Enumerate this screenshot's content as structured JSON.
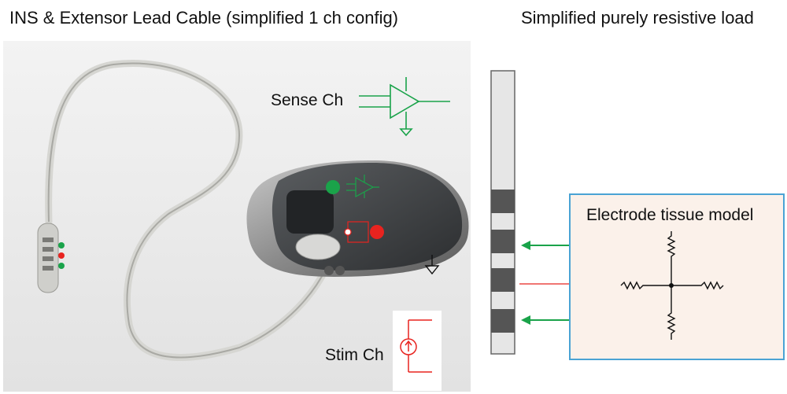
{
  "titles": {
    "left": "INS & Extensor Lead Cable (simplified 1 ch config)",
    "right": "Simplified purely resistive load"
  },
  "labels": {
    "sense_channel": "Sense Ch",
    "stim_channel": "Stim Ch",
    "tissue_model": "Electrode tissue model"
  },
  "colors": {
    "sense": "#1aa34a",
    "stim": "#e8231f",
    "box_border": "#4aa3d4",
    "box_fill": "#fbf1ea"
  }
}
